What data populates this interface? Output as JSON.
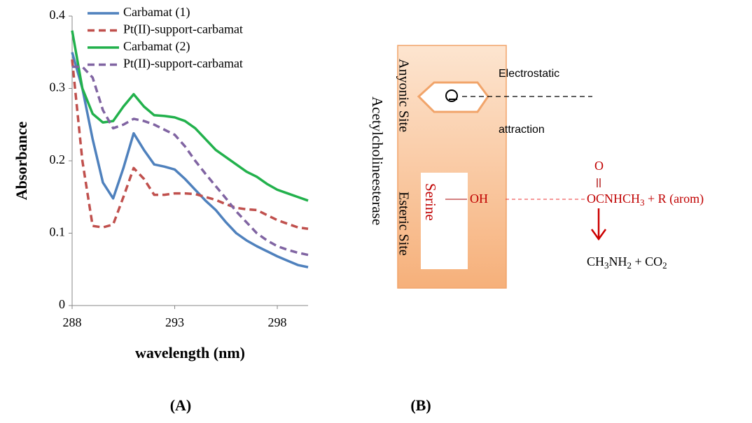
{
  "chart_data": {
    "type": "line",
    "x_label": "wavelength (nm)",
    "y_label": "Absorbance",
    "x": [
      288,
      288.5,
      289,
      289.5,
      290,
      290.5,
      291,
      291.5,
      292,
      292.5,
      293,
      293.5,
      294,
      294.5,
      295,
      295.5,
      296,
      296.5,
      297,
      297.5,
      298,
      298.5,
      299,
      299.5
    ],
    "series": [
      {
        "name": "Carbamat (1)",
        "color": "#4f81bd",
        "dashed": false,
        "values": [
          0.35,
          0.3,
          0.23,
          0.17,
          0.148,
          0.19,
          0.238,
          0.215,
          0.195,
          0.192,
          0.188,
          0.175,
          0.16,
          0.145,
          0.132,
          0.115,
          0.1,
          0.09,
          0.082,
          0.075,
          0.068,
          0.062,
          0.056,
          0.053
        ]
      },
      {
        "name": "Pt(II)-support-carbamat",
        "color": "#c0504d",
        "dashed": true,
        "values": [
          0.34,
          0.2,
          0.11,
          0.108,
          0.112,
          0.15,
          0.19,
          0.175,
          0.153,
          0.153,
          0.155,
          0.155,
          0.154,
          0.15,
          0.146,
          0.14,
          0.135,
          0.133,
          0.132,
          0.125,
          0.118,
          0.113,
          0.108,
          0.106
        ]
      },
      {
        "name": "Carbamat (2)",
        "color": "#22b14c",
        "dashed": false,
        "values": [
          0.38,
          0.3,
          0.265,
          0.253,
          0.255,
          0.275,
          0.292,
          0.275,
          0.263,
          0.262,
          0.26,
          0.255,
          0.245,
          0.23,
          0.215,
          0.205,
          0.195,
          0.185,
          0.178,
          0.168,
          0.16,
          0.155,
          0.15,
          0.145
        ]
      },
      {
        "name": "Pt(II)-support-carbamat",
        "color": "#8064a2",
        "dashed": true,
        "values": [
          0.33,
          0.33,
          0.315,
          0.27,
          0.245,
          0.25,
          0.258,
          0.255,
          0.25,
          0.243,
          0.236,
          0.22,
          0.2,
          0.182,
          0.165,
          0.148,
          0.13,
          0.115,
          0.1,
          0.09,
          0.082,
          0.077,
          0.073,
          0.07
        ]
      }
    ],
    "xlim": [
      288,
      299.5
    ],
    "xticks": [
      288,
      293,
      298
    ],
    "ylim": [
      0,
      0.4
    ],
    "yticks": [
      0,
      0.1,
      0.2,
      0.3,
      0.4
    ],
    "grid": false,
    "legend": "top-left"
  },
  "diagram": {
    "enzyme": "Acetylcholineesterase",
    "anionic_site": "Anyonic Site",
    "esteric_site": "Esteric Site",
    "serine": "Serine",
    "attraction_top": "Electrostatic",
    "attraction_bottom": "attraction",
    "hydroxyl": "OH",
    "carbonyl_o": "O",
    "reagent": [
      "OCNHCH",
      "3",
      " + R (arom)"
    ],
    "product": [
      "CH",
      "3",
      "NH",
      "2",
      " + CO",
      "2"
    ]
  },
  "panel_labels": [
    "(A)",
    "(B)"
  ]
}
